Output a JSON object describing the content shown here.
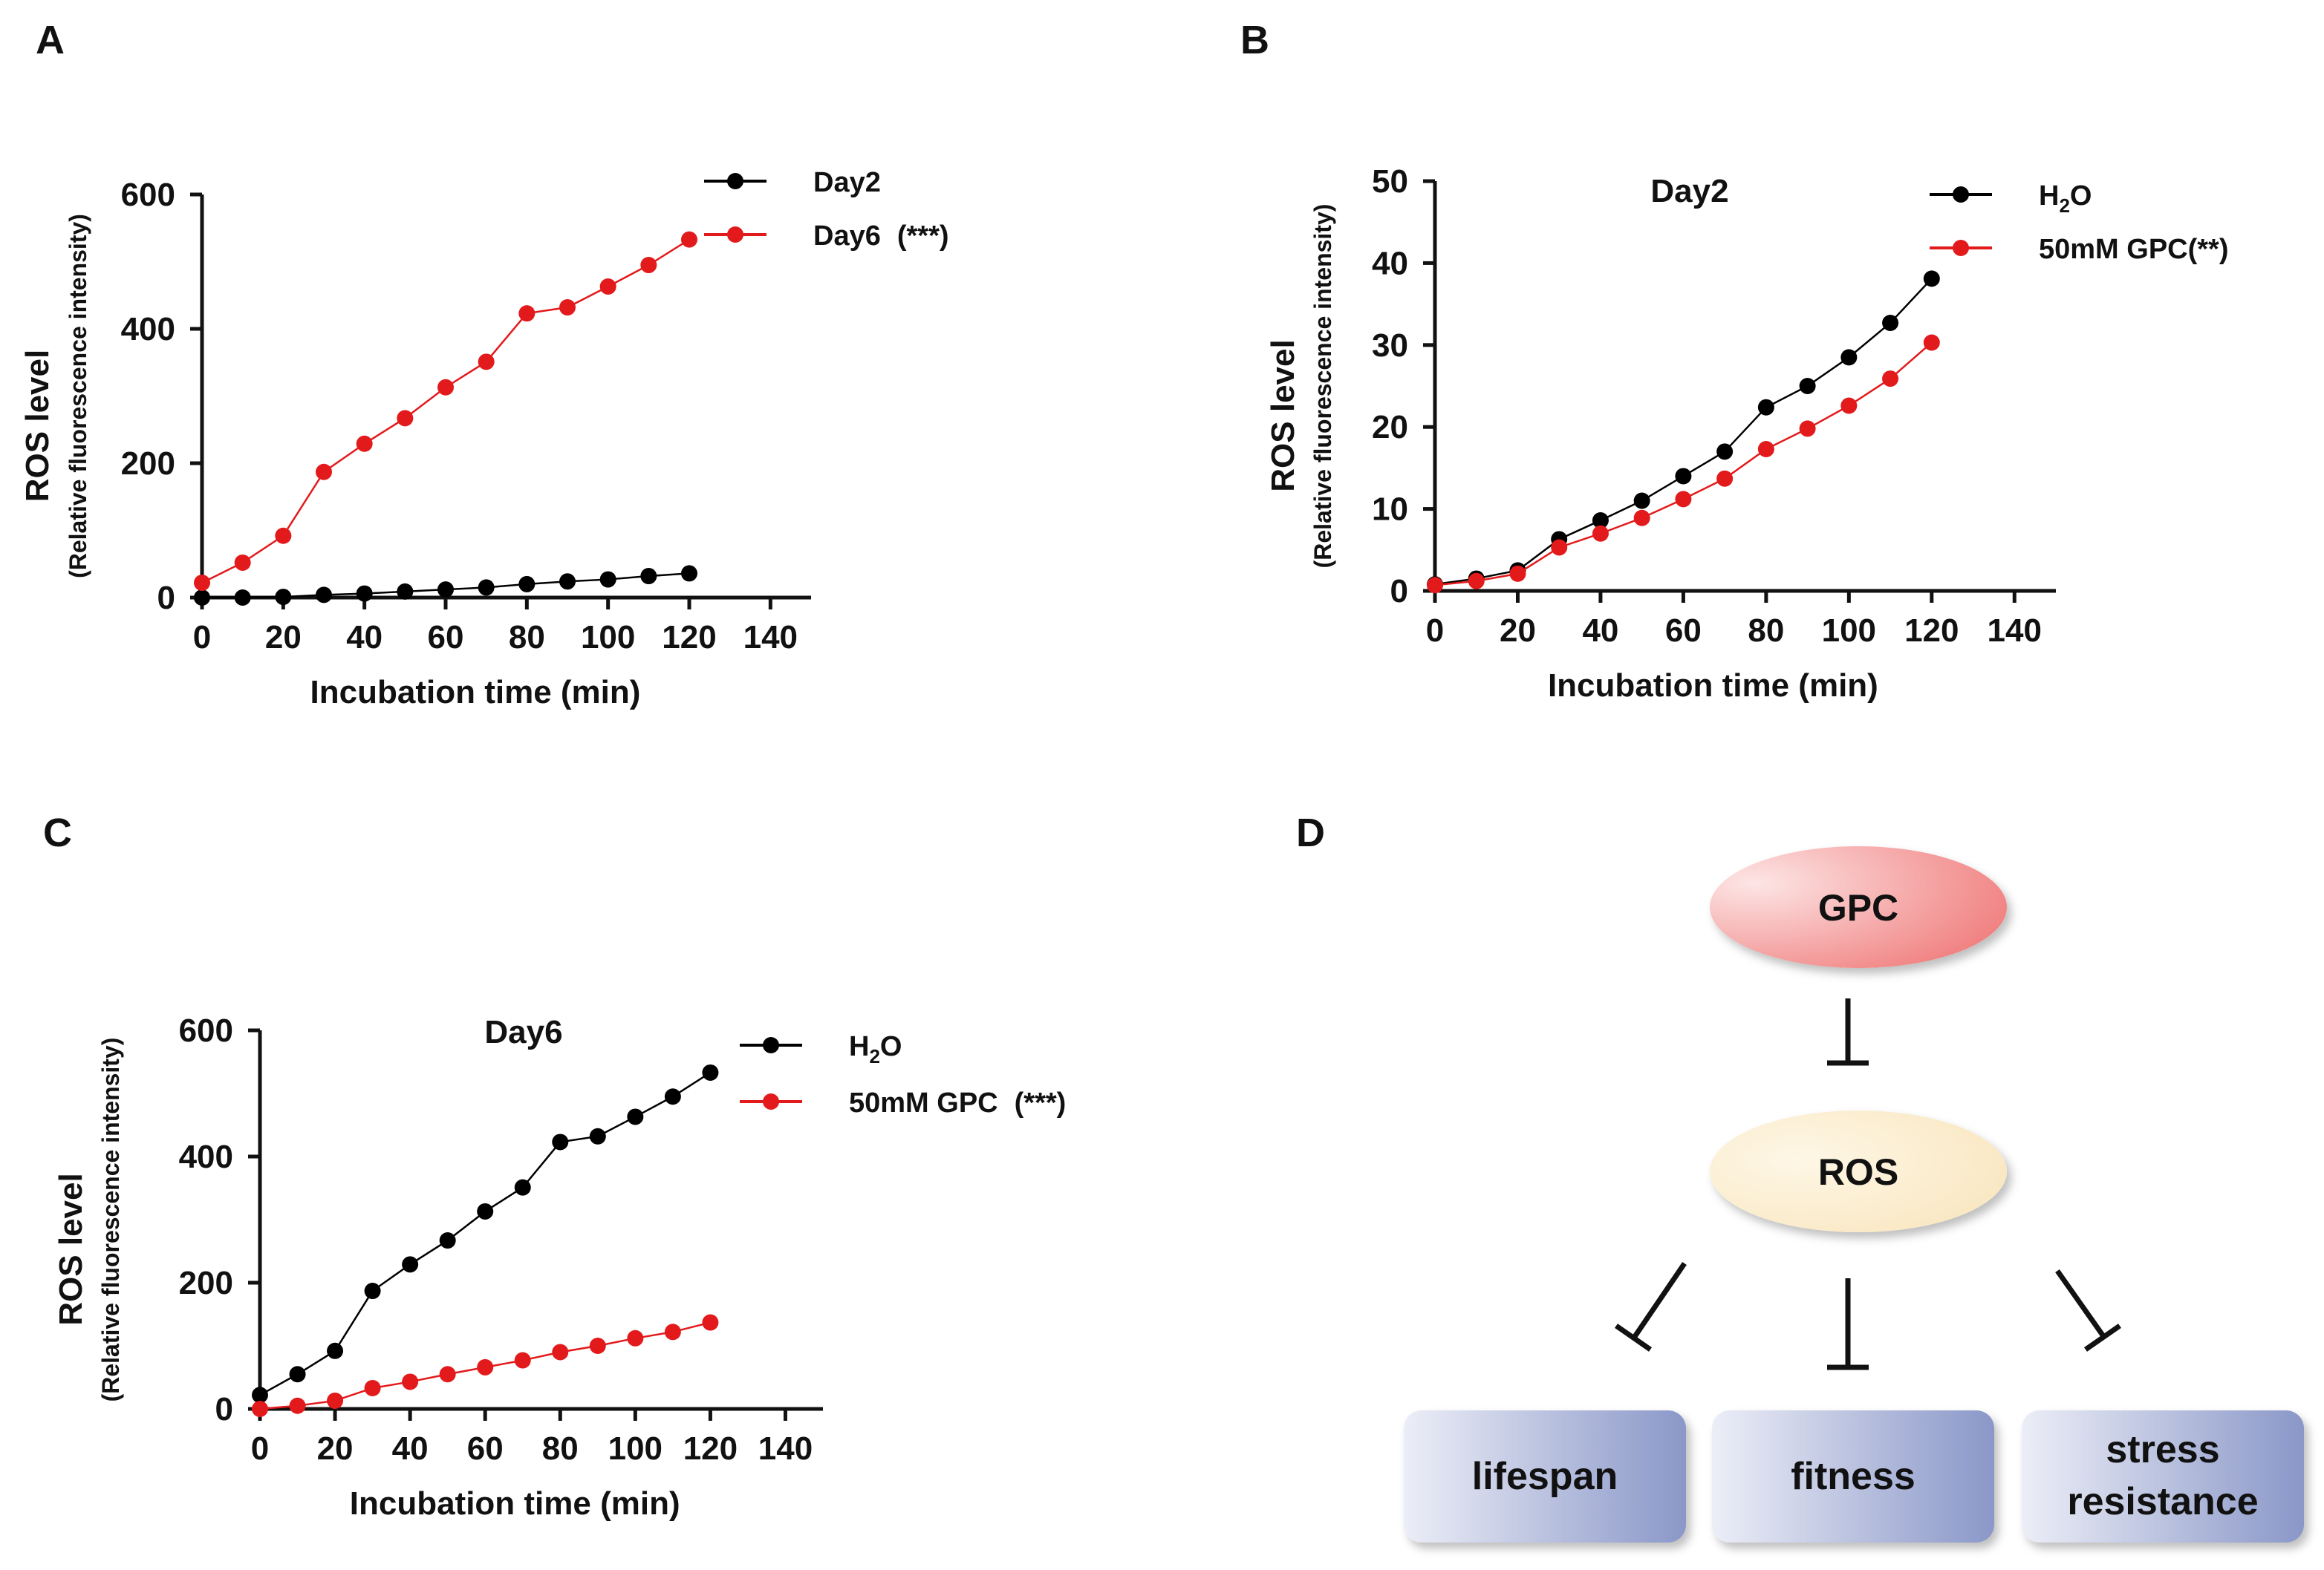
{
  "panels": [
    {
      "id": "A",
      "label": "A"
    },
    {
      "id": "B",
      "label": "B"
    },
    {
      "id": "C",
      "label": "C"
    },
    {
      "id": "D",
      "label": "D"
    }
  ],
  "chart_data": [
    {
      "panel": "A",
      "type": "line",
      "title": "",
      "xlabel": "Incubation time (min)",
      "ylabel": "ROS level",
      "ylabel2": "(Relative fluorescence intensity)",
      "xlim": [
        0,
        150
      ],
      "ylim": [
        0,
        600
      ],
      "xticks": [
        0,
        20,
        40,
        60,
        80,
        100,
        120,
        140
      ],
      "yticks": [
        0,
        200,
        400,
        600
      ],
      "x": [
        0,
        10,
        20,
        30,
        40,
        50,
        60,
        70,
        80,
        90,
        100,
        110,
        120
      ],
      "series": [
        {
          "name": "Day2",
          "annotation": "",
          "color": "#000000",
          "values": [
            0,
            0,
            1,
            4,
            6,
            9,
            12,
            15,
            20,
            24,
            27,
            32,
            36
          ]
        },
        {
          "name": "Day6",
          "annotation": "(***)",
          "color": "#e31a1c",
          "values": [
            22,
            52,
            92,
            187,
            229,
            267,
            313,
            351,
            423,
            432,
            463,
            495,
            533
          ]
        }
      ]
    },
    {
      "panel": "B",
      "type": "line",
      "title": "Day2",
      "xlabel": "Incubation time (min)",
      "ylabel": "ROS level",
      "ylabel2": "(Relative fluorescence intensity)",
      "xlim": [
        0,
        150
      ],
      "ylim": [
        0,
        50
      ],
      "xticks": [
        0,
        20,
        40,
        60,
        80,
        100,
        120,
        140
      ],
      "yticks": [
        0,
        10,
        20,
        30,
        40,
        50
      ],
      "x": [
        0,
        10,
        20,
        30,
        40,
        50,
        60,
        70,
        80,
        90,
        100,
        110,
        120
      ],
      "series": [
        {
          "name": "H",
          "name_sub": "2",
          "name_tail": "O",
          "annotation": "",
          "color": "#000000",
          "values": [
            0.8,
            1.5,
            2.5,
            6.3,
            8.6,
            11.0,
            14.0,
            17.0,
            22.4,
            25.0,
            28.5,
            32.7,
            38.1
          ]
        },
        {
          "name": "50mM GPC(**)",
          "annotation": "",
          "color": "#e31a1c",
          "values": [
            0.7,
            1.2,
            2.1,
            5.3,
            7.0,
            8.9,
            11.2,
            13.7,
            17.3,
            19.8,
            22.6,
            25.9,
            30.3
          ]
        }
      ]
    },
    {
      "panel": "C",
      "type": "line",
      "title": "Day6",
      "xlabel": "Incubation time (min)",
      "ylabel": "ROS level",
      "ylabel2": "(Relative fluorescence intensity)",
      "xlim": [
        0,
        150
      ],
      "ylim": [
        0,
        600
      ],
      "xticks": [
        0,
        20,
        40,
        60,
        80,
        100,
        120,
        140
      ],
      "yticks": [
        0,
        200,
        400,
        600
      ],
      "x": [
        0,
        10,
        20,
        30,
        40,
        50,
        60,
        70,
        80,
        90,
        100,
        110,
        120
      ],
      "series": [
        {
          "name": "H",
          "name_sub": "2",
          "name_tail": "O",
          "annotation": "",
          "color": "#000000",
          "values": [
            22,
            55,
            92,
            187,
            229,
            267,
            313,
            351,
            423,
            432,
            463,
            495,
            533
          ]
        },
        {
          "name": "50mM GPC",
          "annotation": "(***)",
          "color": "#e31a1c",
          "values": [
            0,
            5,
            13,
            33,
            43,
            55,
            66,
            77,
            90,
            100,
            112,
            122,
            137
          ]
        }
      ]
    }
  ],
  "diagram": {
    "gpc": "GPC",
    "ros": "ROS",
    "targets": [
      {
        "lines": [
          "lifespan"
        ]
      },
      {
        "lines": [
          "fitness"
        ]
      },
      {
        "lines": [
          "stress",
          "resistance"
        ]
      }
    ],
    "colors": {
      "gpc_light": "#fde5e5",
      "gpc_dark": "#f07c7c",
      "ros_light": "#fef7e6",
      "ros_dark": "#f8e4bb",
      "box_light": "#eceef7",
      "box_dark": "#8a97c8"
    }
  }
}
